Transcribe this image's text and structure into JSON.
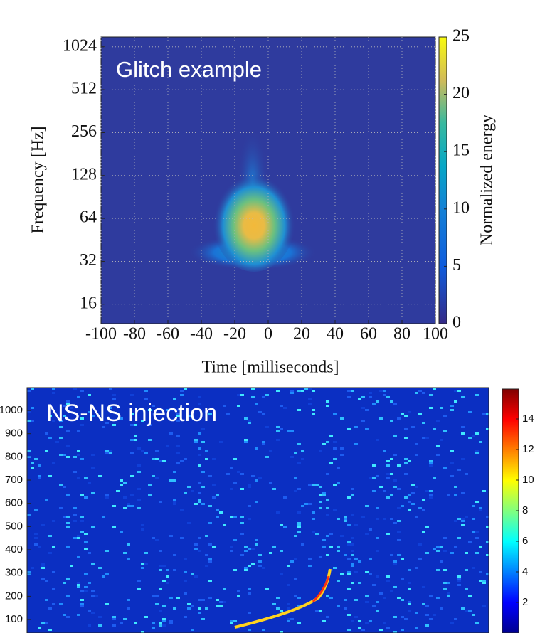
{
  "chart_data": [
    {
      "type": "heatmap",
      "title": "Glitch example",
      "xlabel": "Time [milliseconds]",
      "ylabel": "Frequency [Hz]",
      "xlim": [
        -100,
        100
      ],
      "xticks": [
        -100,
        -80,
        -60,
        -40,
        -20,
        0,
        20,
        40,
        60,
        80,
        100
      ],
      "ylim": [
        11.7,
        1200
      ],
      "yticks": [
        16,
        32,
        64,
        128,
        256,
        512,
        1024
      ],
      "yscale": "log",
      "grid": true,
      "colorbar_label": "Normalized energy",
      "clim": [
        0,
        25
      ],
      "cticks": [
        0,
        5,
        10,
        15,
        20,
        25
      ],
      "colormap": "parula"
    },
    {
      "type": "heatmap",
      "title": "NS-NS injection",
      "ylim": [
        42,
        1098
      ],
      "yticks": [
        100,
        200,
        300,
        400,
        500,
        600,
        700,
        800,
        900,
        1000
      ],
      "grid": false,
      "clim": [
        0,
        16
      ],
      "cticks": [
        2,
        4,
        6,
        8,
        10,
        12,
        14
      ],
      "colormap": "jet"
    }
  ]
}
